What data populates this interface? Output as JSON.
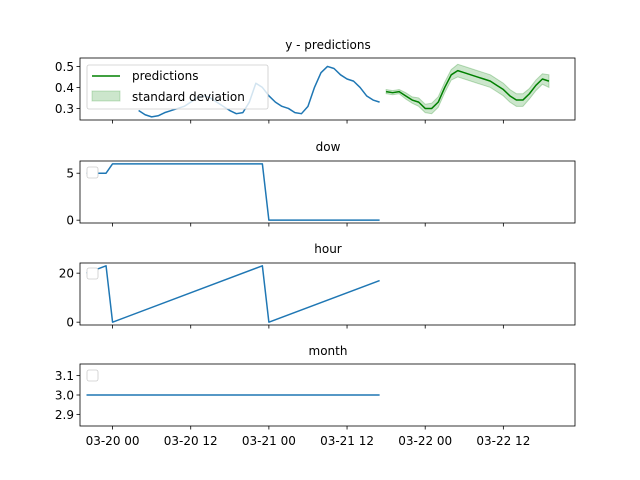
{
  "chart_data": [
    {
      "type": "line",
      "title": "y - predictions",
      "xlim": [
        "2024-03-19 19:00",
        "2024-03-22 23:00"
      ],
      "ylim": [
        0.245,
        0.54
      ],
      "yticks": [
        0.3,
        0.4,
        0.5
      ],
      "ytick_labels": [
        "0.3",
        "0.4",
        "0.5"
      ],
      "legend": {
        "placement": "upper-left",
        "entries": [
          {
            "label": "predictions",
            "kind": "line",
            "color": "#008000"
          },
          {
            "label": "standard deviation",
            "kind": "band",
            "color": "#008000"
          }
        ]
      },
      "series": [
        {
          "kind": "line",
          "color": "#1f77b4",
          "x": [
            "2024-03-20 04:00",
            "2024-03-20 05:00",
            "2024-03-20 06:00",
            "2024-03-20 07:00",
            "2024-03-20 08:00",
            "2024-03-20 09:00",
            "2024-03-20 10:00",
            "2024-03-20 11:00",
            "2024-03-20 12:00",
            "2024-03-20 13:00",
            "2024-03-20 14:00",
            "2024-03-20 15:00",
            "2024-03-20 16:00",
            "2024-03-20 17:00",
            "2024-03-20 18:00",
            "2024-03-20 19:00",
            "2024-03-20 20:00",
            "2024-03-20 21:00",
            "2024-03-20 22:00",
            "2024-03-20 23:00",
            "2024-03-21 00:00",
            "2024-03-21 01:00",
            "2024-03-21 02:00",
            "2024-03-21 03:00",
            "2024-03-21 04:00",
            "2024-03-21 05:00",
            "2024-03-21 06:00",
            "2024-03-21 07:00",
            "2024-03-21 08:00",
            "2024-03-21 09:00",
            "2024-03-21 10:00",
            "2024-03-21 11:00",
            "2024-03-21 12:00",
            "2024-03-21 13:00",
            "2024-03-21 14:00",
            "2024-03-21 15:00",
            "2024-03-21 16:00",
            "2024-03-21 17:00"
          ],
          "y": [
            0.29,
            0.27,
            0.26,
            0.265,
            0.28,
            0.29,
            0.3,
            0.31,
            0.33,
            0.35,
            0.36,
            0.35,
            0.33,
            0.31,
            0.29,
            0.275,
            0.28,
            0.33,
            0.42,
            0.4,
            0.36,
            0.33,
            0.31,
            0.3,
            0.28,
            0.275,
            0.31,
            0.4,
            0.47,
            0.5,
            0.49,
            0.46,
            0.44,
            0.43,
            0.4,
            0.36,
            0.34,
            0.33
          ]
        },
        {
          "name": "predictions",
          "kind": "line",
          "color": "#008000",
          "x": [
            "2024-03-21 18:00",
            "2024-03-21 19:00",
            "2024-03-21 20:00",
            "2024-03-21 21:00",
            "2024-03-21 22:00",
            "2024-03-21 23:00",
            "2024-03-22 00:00",
            "2024-03-22 01:00",
            "2024-03-22 02:00",
            "2024-03-22 03:00",
            "2024-03-22 04:00",
            "2024-03-22 05:00",
            "2024-03-22 06:00",
            "2024-03-22 07:00",
            "2024-03-22 08:00",
            "2024-03-22 09:00",
            "2024-03-22 10:00",
            "2024-03-22 11:00",
            "2024-03-22 12:00",
            "2024-03-22 13:00",
            "2024-03-22 14:00",
            "2024-03-22 15:00",
            "2024-03-22 16:00",
            "2024-03-22 17:00",
            "2024-03-22 18:00",
            "2024-03-22 19:00"
          ],
          "y": [
            0.38,
            0.375,
            0.38,
            0.36,
            0.34,
            0.33,
            0.3,
            0.3,
            0.33,
            0.4,
            0.46,
            0.48,
            0.47,
            0.46,
            0.45,
            0.44,
            0.43,
            0.41,
            0.39,
            0.36,
            0.34,
            0.34,
            0.37,
            0.41,
            0.44,
            0.43
          ]
        },
        {
          "name": "standard deviation",
          "kind": "band",
          "color": "#008000",
          "x": [
            "2024-03-21 18:00",
            "2024-03-21 19:00",
            "2024-03-21 20:00",
            "2024-03-21 21:00",
            "2024-03-21 22:00",
            "2024-03-21 23:00",
            "2024-03-22 00:00",
            "2024-03-22 01:00",
            "2024-03-22 02:00",
            "2024-03-22 03:00",
            "2024-03-22 04:00",
            "2024-03-22 05:00",
            "2024-03-22 06:00",
            "2024-03-22 07:00",
            "2024-03-22 08:00",
            "2024-03-22 09:00",
            "2024-03-22 10:00",
            "2024-03-22 11:00",
            "2024-03-22 12:00",
            "2024-03-22 13:00",
            "2024-03-22 14:00",
            "2024-03-22 15:00",
            "2024-03-22 16:00",
            "2024-03-22 17:00",
            "2024-03-22 18:00",
            "2024-03-22 19:00"
          ],
          "lower": [
            0.37,
            0.365,
            0.37,
            0.345,
            0.325,
            0.31,
            0.28,
            0.275,
            0.305,
            0.375,
            0.435,
            0.45,
            0.44,
            0.43,
            0.42,
            0.41,
            0.4,
            0.38,
            0.36,
            0.33,
            0.31,
            0.31,
            0.345,
            0.385,
            0.415,
            0.4
          ],
          "upper": [
            0.39,
            0.385,
            0.39,
            0.375,
            0.355,
            0.35,
            0.32,
            0.325,
            0.355,
            0.425,
            0.485,
            0.51,
            0.5,
            0.49,
            0.48,
            0.47,
            0.46,
            0.44,
            0.42,
            0.39,
            0.37,
            0.37,
            0.395,
            0.435,
            0.465,
            0.46
          ]
        }
      ]
    },
    {
      "type": "line",
      "title": "dow",
      "xlim": [
        "2024-03-19 19:00",
        "2024-03-22 23:00"
      ],
      "ylim": [
        -0.3,
        6.3
      ],
      "yticks": [
        0,
        5
      ],
      "ytick_labels": [
        "0",
        "5"
      ],
      "legend": {
        "placement": "upper-left",
        "entries": []
      },
      "series": [
        {
          "kind": "line",
          "color": "#1f77b4",
          "x": [
            "2024-03-19 20:00",
            "2024-03-19 23:00",
            "2024-03-20 00:00",
            "2024-03-20 23:00",
            "2024-03-21 00:00",
            "2024-03-21 17:00"
          ],
          "y": [
            5,
            5,
            6,
            6,
            0,
            0
          ]
        }
      ]
    },
    {
      "type": "line",
      "title": "hour",
      "xlim": [
        "2024-03-19 19:00",
        "2024-03-22 23:00"
      ],
      "ylim": [
        -1.15,
        24.15
      ],
      "yticks": [
        0,
        20
      ],
      "ytick_labels": [
        "0",
        "20"
      ],
      "legend": {
        "placement": "upper-left",
        "entries": []
      },
      "series": [
        {
          "kind": "line",
          "color": "#1f77b4",
          "x": [
            "2024-03-19 20:00",
            "2024-03-19 23:00",
            "2024-03-20 00:00",
            "2024-03-20 23:00",
            "2024-03-21 00:00",
            "2024-03-21 17:00"
          ],
          "y": [
            20,
            23,
            0,
            23,
            0,
            17
          ]
        }
      ]
    },
    {
      "type": "line",
      "title": "month",
      "xlim": [
        "2024-03-19 19:00",
        "2024-03-22 23:00"
      ],
      "ylim": [
        2.84,
        3.16
      ],
      "yticks": [
        2.9,
        3.0,
        3.1
      ],
      "ytick_labels": [
        "2.9",
        "3.0",
        "3.1"
      ],
      "legend": {
        "placement": "upper-left",
        "entries": []
      },
      "xticks": [
        "2024-03-20 00:00",
        "2024-03-20 12:00",
        "2024-03-21 00:00",
        "2024-03-21 12:00",
        "2024-03-22 00:00",
        "2024-03-22 12:00"
      ],
      "xtick_labels": [
        "03-20 00",
        "03-20 12",
        "03-21 00",
        "03-21 12",
        "03-22 00",
        "03-22 12"
      ],
      "series": [
        {
          "kind": "line",
          "color": "#1f77b4",
          "x": [
            "2024-03-19 20:00",
            "2024-03-21 17:00"
          ],
          "y": [
            3,
            3
          ]
        }
      ]
    }
  ]
}
